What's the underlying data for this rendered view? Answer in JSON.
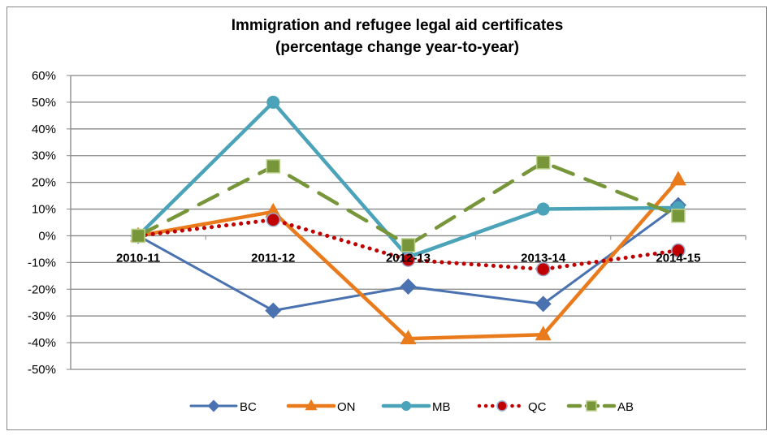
{
  "chart_data": {
    "type": "line",
    "title": [
      "Immigration and refugee legal aid certificates",
      "(percentage change year-to-year)"
    ],
    "categories": [
      "2010-11",
      "2011-12",
      "2012-13",
      "2013-14",
      "2014-15"
    ],
    "ylim": [
      -50,
      60
    ],
    "yticks": [
      60,
      50,
      40,
      30,
      20,
      10,
      0,
      -10,
      -20,
      -30,
      -40,
      -50
    ],
    "ytick_format": "percent",
    "grid": true,
    "legend": "bottom",
    "series": [
      {
        "name": "BC",
        "values": [
          0,
          -28,
          -19,
          -25.5,
          11.5
        ],
        "color": "#4a72b0",
        "marker": "diamond",
        "dash": "solid"
      },
      {
        "name": "ON",
        "values": [
          0,
          9,
          -38.5,
          -37,
          21
        ],
        "color": "#e97b1c",
        "marker": "triangle",
        "dash": "solid"
      },
      {
        "name": "MB",
        "values": [
          0,
          50,
          -8,
          10,
          10.5
        ],
        "color": "#4aa3b8",
        "marker": "circle",
        "dash": "solid"
      },
      {
        "name": "QC",
        "values": [
          0,
          6,
          -9,
          -12.5,
          -5.5
        ],
        "color": "#c00000",
        "marker": "circle",
        "dash": "dotted"
      },
      {
        "name": "AB",
        "values": [
          0,
          26,
          -3.5,
          27.5,
          7.5
        ],
        "color": "#77963a",
        "marker": "square",
        "dash": "dashed"
      }
    ]
  }
}
